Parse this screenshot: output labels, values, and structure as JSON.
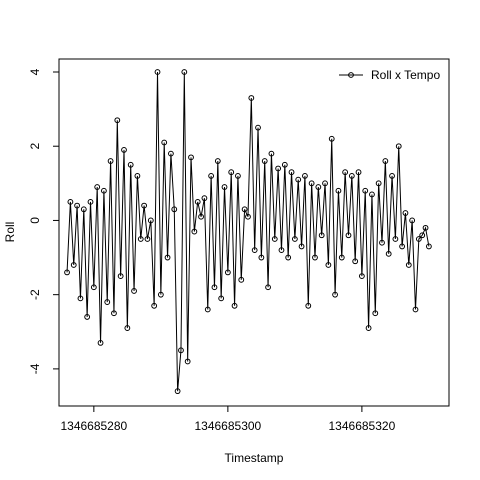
{
  "chart_data": {
    "type": "line",
    "x_label": "Timestamp",
    "y_label": "Roll",
    "x": [
      1346685276.0,
      1346685276.5,
      1346685277.0,
      1346685277.5,
      1346685278.0,
      1346685278.5,
      1346685279.0,
      1346685279.5,
      1346685280.0,
      1346685280.5,
      1346685281.0,
      1346685281.5,
      1346685282.0,
      1346685282.5,
      1346685283.0,
      1346685283.5,
      1346685284.0,
      1346685284.5,
      1346685285.0,
      1346685285.5,
      1346685286.0,
      1346685286.5,
      1346685287.0,
      1346685287.5,
      1346685288.0,
      1346685288.5,
      1346685289.0,
      1346685289.5,
      1346685290.0,
      1346685290.5,
      1346685291.0,
      1346685291.5,
      1346685292.0,
      1346685292.5,
      1346685293.0,
      1346685293.5,
      1346685294.0,
      1346685294.5,
      1346685295.0,
      1346685295.5,
      1346685296.0,
      1346685296.5,
      1346685297.0,
      1346685297.5,
      1346685298.0,
      1346685298.5,
      1346685299.0,
      1346685299.5,
      1346685300.0,
      1346685300.5,
      1346685301.0,
      1346685301.5,
      1346685302.0,
      1346685302.5,
      1346685303.0,
      1346685303.5,
      1346685304.0,
      1346685304.5,
      1346685305.0,
      1346685305.5,
      1346685306.0,
      1346685306.5,
      1346685307.0,
      1346685307.5,
      1346685308.0,
      1346685308.5,
      1346685309.0,
      1346685309.5,
      1346685310.0,
      1346685310.5,
      1346685311.0,
      1346685311.5,
      1346685312.0,
      1346685312.5,
      1346685313.0,
      1346685313.5,
      1346685314.0,
      1346685314.5,
      1346685315.0,
      1346685315.5,
      1346685316.0,
      1346685316.5,
      1346685317.0,
      1346685317.5,
      1346685318.0,
      1346685318.5,
      1346685319.0,
      1346685319.5,
      1346685320.0,
      1346685320.5,
      1346685321.0,
      1346685321.5,
      1346685322.0,
      1346685322.5,
      1346685323.0,
      1346685323.5,
      1346685324.0,
      1346685324.5,
      1346685325.0,
      1346685325.5,
      1346685326.0,
      1346685326.5,
      1346685327.0,
      1346685327.5,
      1346685328.0,
      1346685328.5,
      1346685329.0,
      1346685329.5,
      1346685330.0
    ],
    "series": [
      {
        "name": "Roll x Tempo",
        "color": "#000000",
        "values": [
          -1.4,
          0.5,
          -1.2,
          0.4,
          -2.1,
          0.3,
          -2.6,
          0.5,
          -1.8,
          0.9,
          -3.3,
          0.8,
          -2.2,
          1.6,
          -2.5,
          2.7,
          -1.5,
          1.9,
          -2.9,
          1.5,
          -1.9,
          1.2,
          -0.5,
          0.4,
          -0.5,
          0.0,
          -2.3,
          4.0,
          -2.0,
          2.1,
          -1.0,
          1.8,
          0.3,
          -4.6,
          -3.5,
          4.0,
          -3.8,
          1.7,
          -0.3,
          0.5,
          0.1,
          0.6,
          -2.4,
          1.2,
          -1.8,
          1.6,
          -2.1,
          0.9,
          -1.4,
          1.3,
          -2.3,
          1.2,
          -1.6,
          0.3,
          0.1,
          3.3,
          -0.8,
          2.5,
          -1.0,
          1.6,
          -1.8,
          1.8,
          -0.5,
          1.4,
          -0.8,
          1.5,
          -1.0,
          1.3,
          -0.5,
          1.1,
          -0.7,
          1.2,
          -2.3,
          1.0,
          -1.0,
          0.9,
          -0.4,
          1.0,
          -1.2,
          2.2,
          -2.0,
          0.8,
          -1.0,
          1.3,
          -0.4,
          1.2,
          -1.1,
          1.3,
          -1.5,
          0.8,
          -2.9,
          0.7,
          -2.5,
          1.0,
          -0.6,
          1.6,
          -0.9,
          1.2,
          -0.5,
          2.0,
          -0.7,
          0.2,
          -1.2,
          0.0,
          -2.4,
          -0.5,
          -0.4,
          -0.2,
          -0.7
        ]
      }
    ],
    "xlim": [
      1346685274.8,
      1346685333.0
    ],
    "ylim": [
      -5.0,
      4.35
    ],
    "xticks": [
      1346685280,
      1346685300,
      1346685320
    ],
    "yticks": [
      -4,
      -2,
      0,
      2,
      4
    ],
    "legend": "top-right",
    "grid": false
  }
}
